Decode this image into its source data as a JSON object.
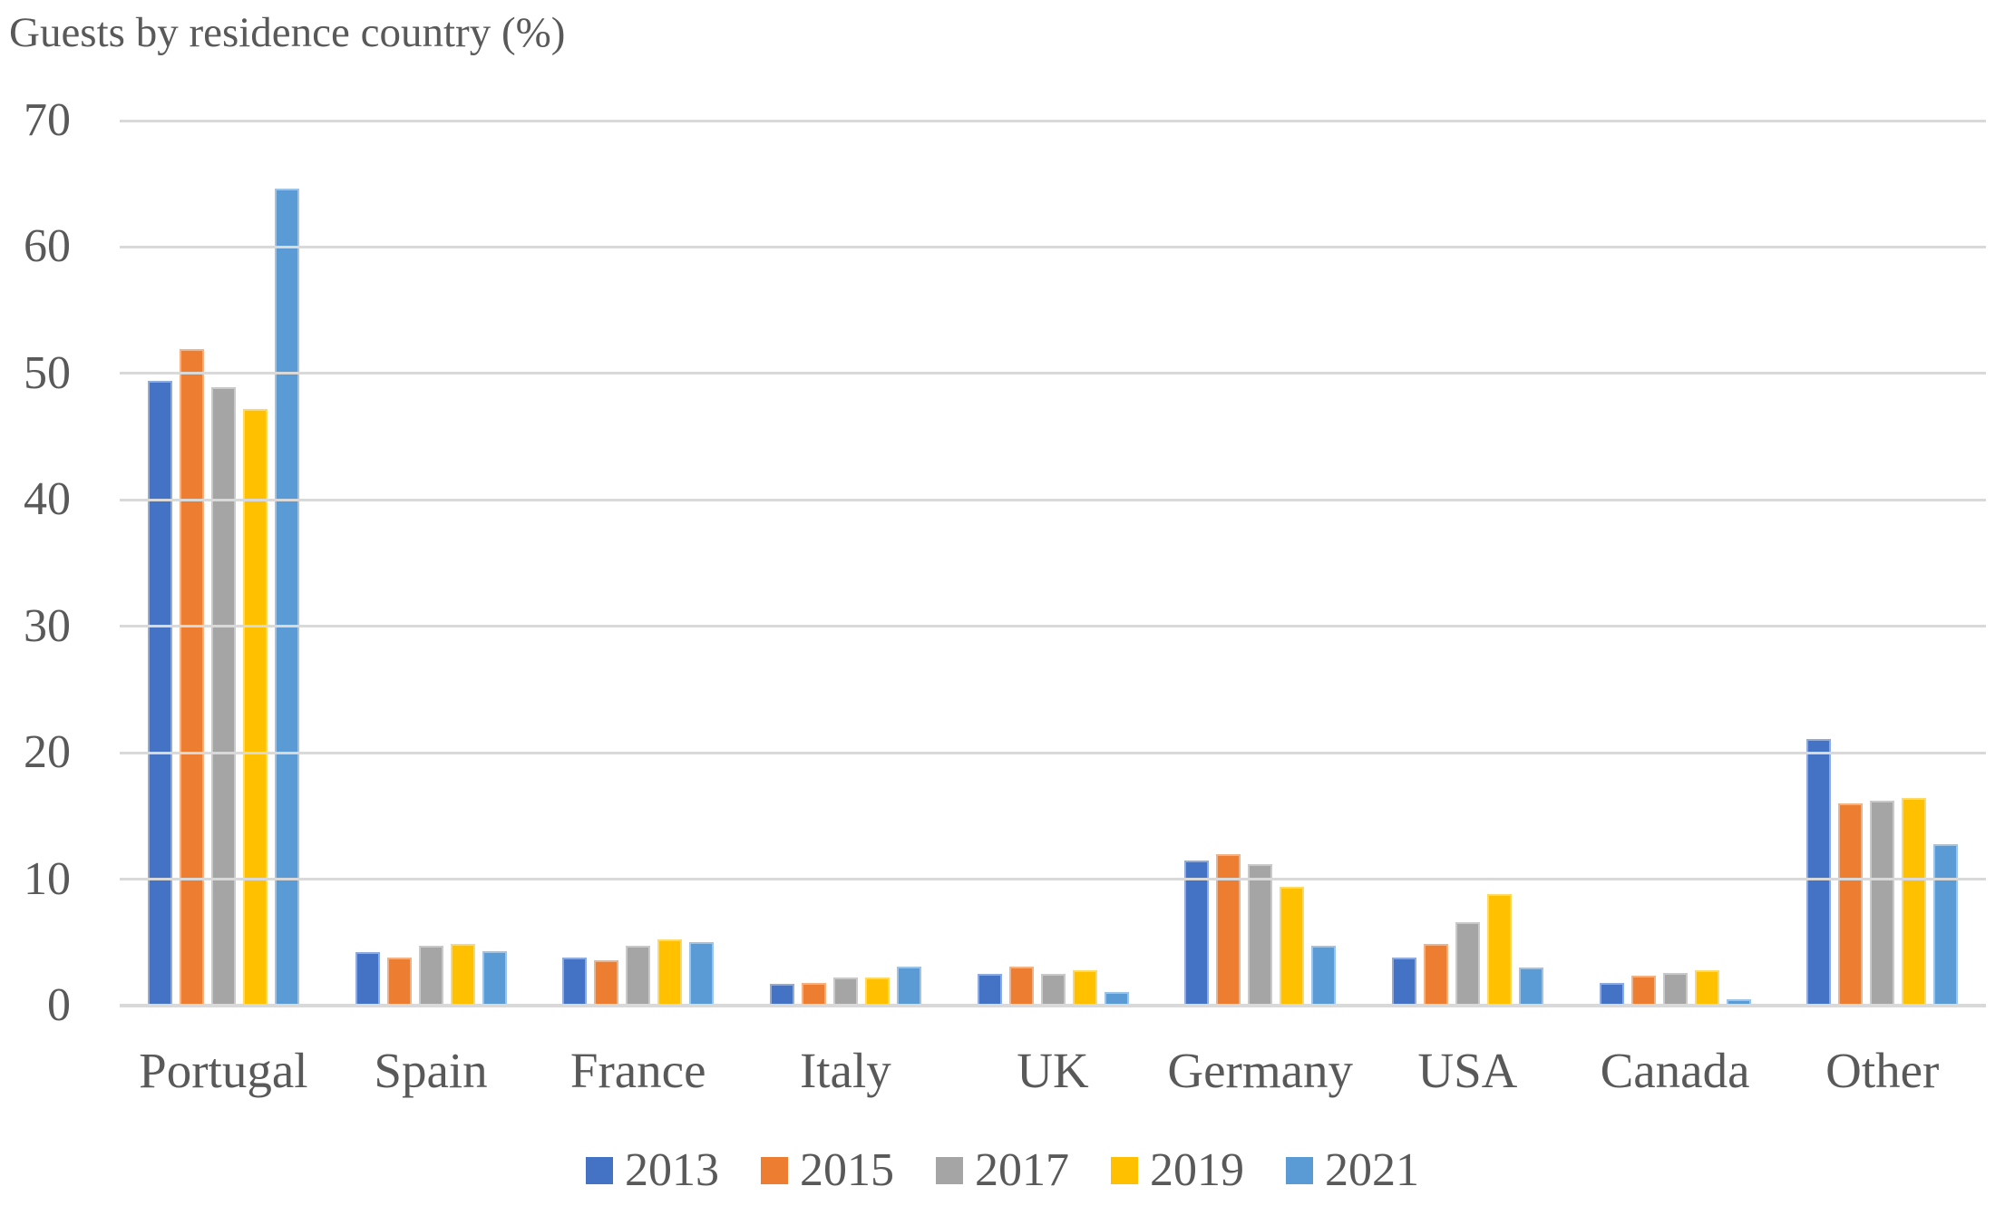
{
  "figure": {
    "text_color": "#595959",
    "gridline_color": "#d9d9d9",
    "background_color": "#ffffff"
  },
  "chart_data": {
    "type": "bar",
    "title": "Guests by residence country (%)",
    "categories": [
      "Portugal",
      "Spain",
      "France",
      "Italy",
      "UK",
      "Germany",
      "USA",
      "Canada",
      "Other"
    ],
    "series": [
      {
        "name": "2013",
        "color": "#4472c4",
        "border_color": "#8faadc",
        "values": [
          49.4,
          4.2,
          3.8,
          1.7,
          2.5,
          11.5,
          3.8,
          1.8,
          21.1
        ]
      },
      {
        "name": "2015",
        "color": "#ed7d31",
        "border_color": "#f4b183",
        "values": [
          51.9,
          3.8,
          3.6,
          1.8,
          3.1,
          12.0,
          4.9,
          2.4,
          16.0
        ]
      },
      {
        "name": "2017",
        "color": "#a5a5a5",
        "border_color": "#c9c9c9",
        "values": [
          48.9,
          4.7,
          4.7,
          2.2,
          2.5,
          11.2,
          6.6,
          2.6,
          16.2
        ]
      },
      {
        "name": "2019",
        "color": "#ffc000",
        "border_color": "#ffd966",
        "values": [
          47.2,
          4.9,
          5.2,
          2.2,
          2.8,
          9.4,
          8.8,
          2.8,
          16.4
        ]
      },
      {
        "name": "2021",
        "color": "#5b9bd5",
        "border_color": "#9dc3e6",
        "values": [
          64.6,
          4.3,
          5.0,
          3.1,
          1.1,
          4.7,
          3.0,
          0.5,
          12.8
        ]
      }
    ],
    "xlabel": "",
    "ylabel": "",
    "ylim": [
      0,
      70
    ],
    "yticks": [
      0,
      10,
      20,
      30,
      40,
      50,
      60,
      70
    ],
    "grid": true,
    "legend_position": "bottom"
  }
}
